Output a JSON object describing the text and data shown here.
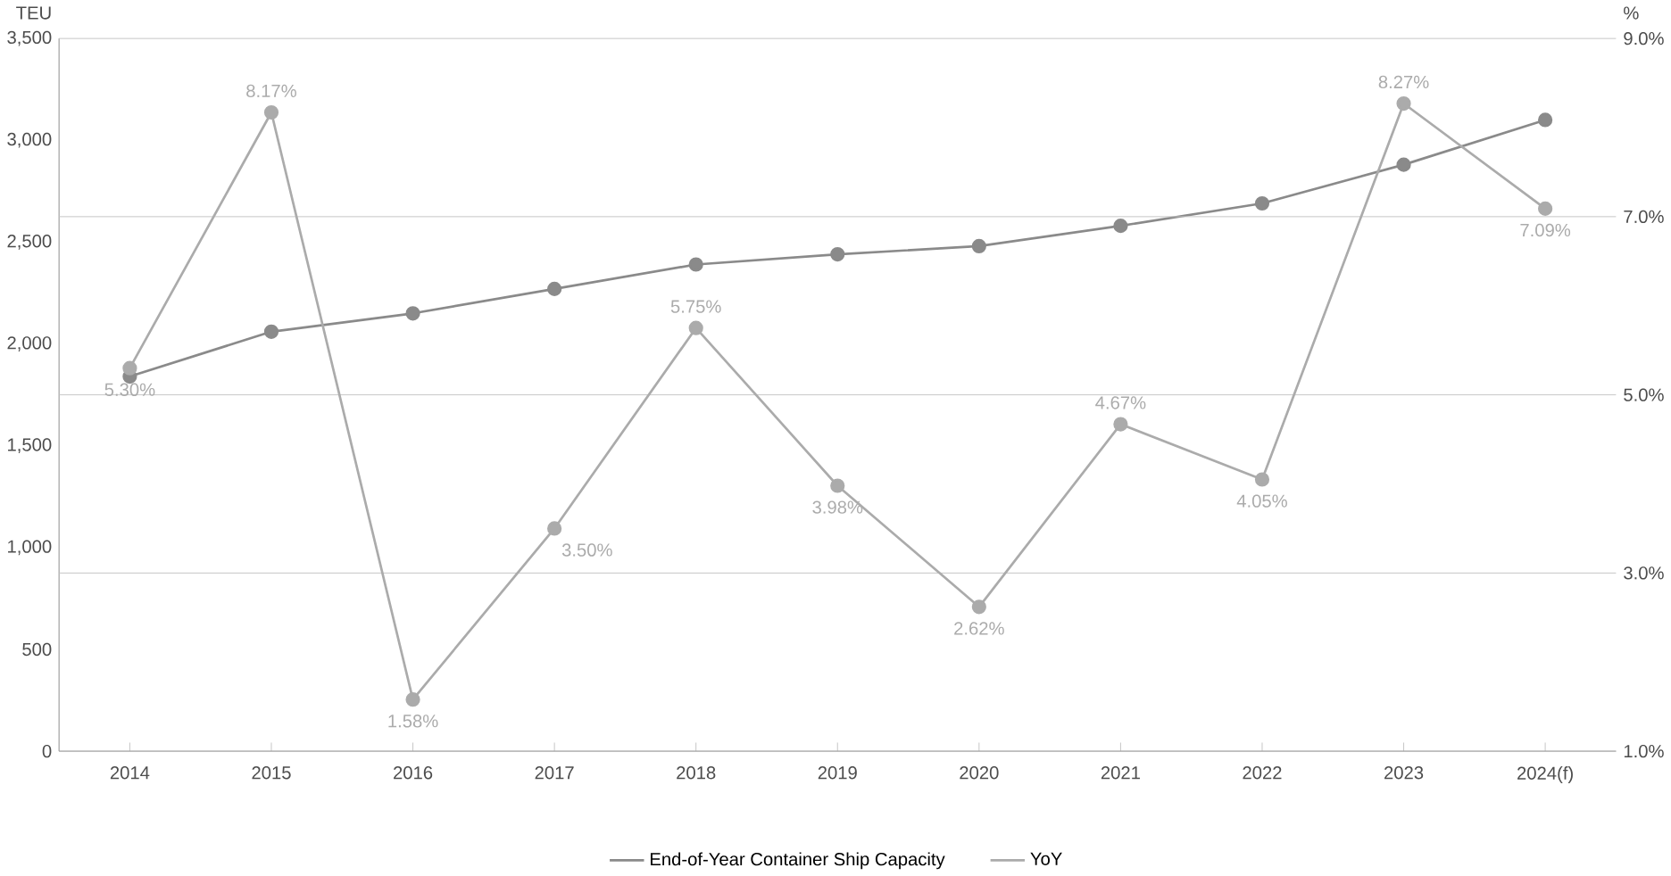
{
  "chart_data": {
    "type": "line",
    "categories": [
      "2014",
      "2015",
      "2016",
      "2017",
      "2018",
      "2019",
      "2020",
      "2021",
      "2022",
      "2023",
      "2024(f)"
    ],
    "ylabel": "TEU",
    "y2label": "%",
    "ylim": [
      0,
      3500
    ],
    "yticks": [
      0,
      500,
      {
        "value": 1000,
        "label": "1,000"
      },
      {
        "value": 1500,
        "label": "1,500"
      },
      {
        "value": 2000,
        "label": "2,000"
      },
      {
        "value": 2500,
        "label": "2,500"
      },
      {
        "value": 3000,
        "label": "3,000"
      },
      {
        "value": 3500,
        "label": "3,500"
      }
    ],
    "y2lim": [
      1,
      9
    ],
    "y2ticks": [
      {
        "value": 1,
        "label": "1.0%"
      },
      {
        "value": 3,
        "label": "3.0%"
      },
      {
        "value": 5,
        "label": "5.0%"
      },
      {
        "value": 7,
        "label": "7.0%"
      },
      {
        "value": 9,
        "label": "9.0%"
      }
    ],
    "series": [
      {
        "name": "End-of-Year Container Ship Capacity",
        "color": "#8a8a8a",
        "values": [
          1840,
          2060,
          2150,
          2270,
          2390,
          2440,
          2480,
          2580,
          2690,
          2880,
          3100
        ]
      },
      {
        "name": "YoY",
        "color": "#ababab",
        "axis": "y2",
        "values": [
          5.3,
          8.17,
          1.58,
          3.5,
          5.75,
          3.98,
          2.62,
          4.67,
          4.05,
          8.27,
          7.09
        ],
        "value_labels": [
          "5.30%",
          "8.17%",
          "1.58%",
          "3.50%",
          "5.75%",
          "3.98%",
          "2.62%",
          "4.67%",
          "4.05%",
          "8.27%",
          "7.09%"
        ]
      }
    ],
    "grid": "y2",
    "legend": "bottom",
    "marker": "circle",
    "line_style": "solid"
  }
}
